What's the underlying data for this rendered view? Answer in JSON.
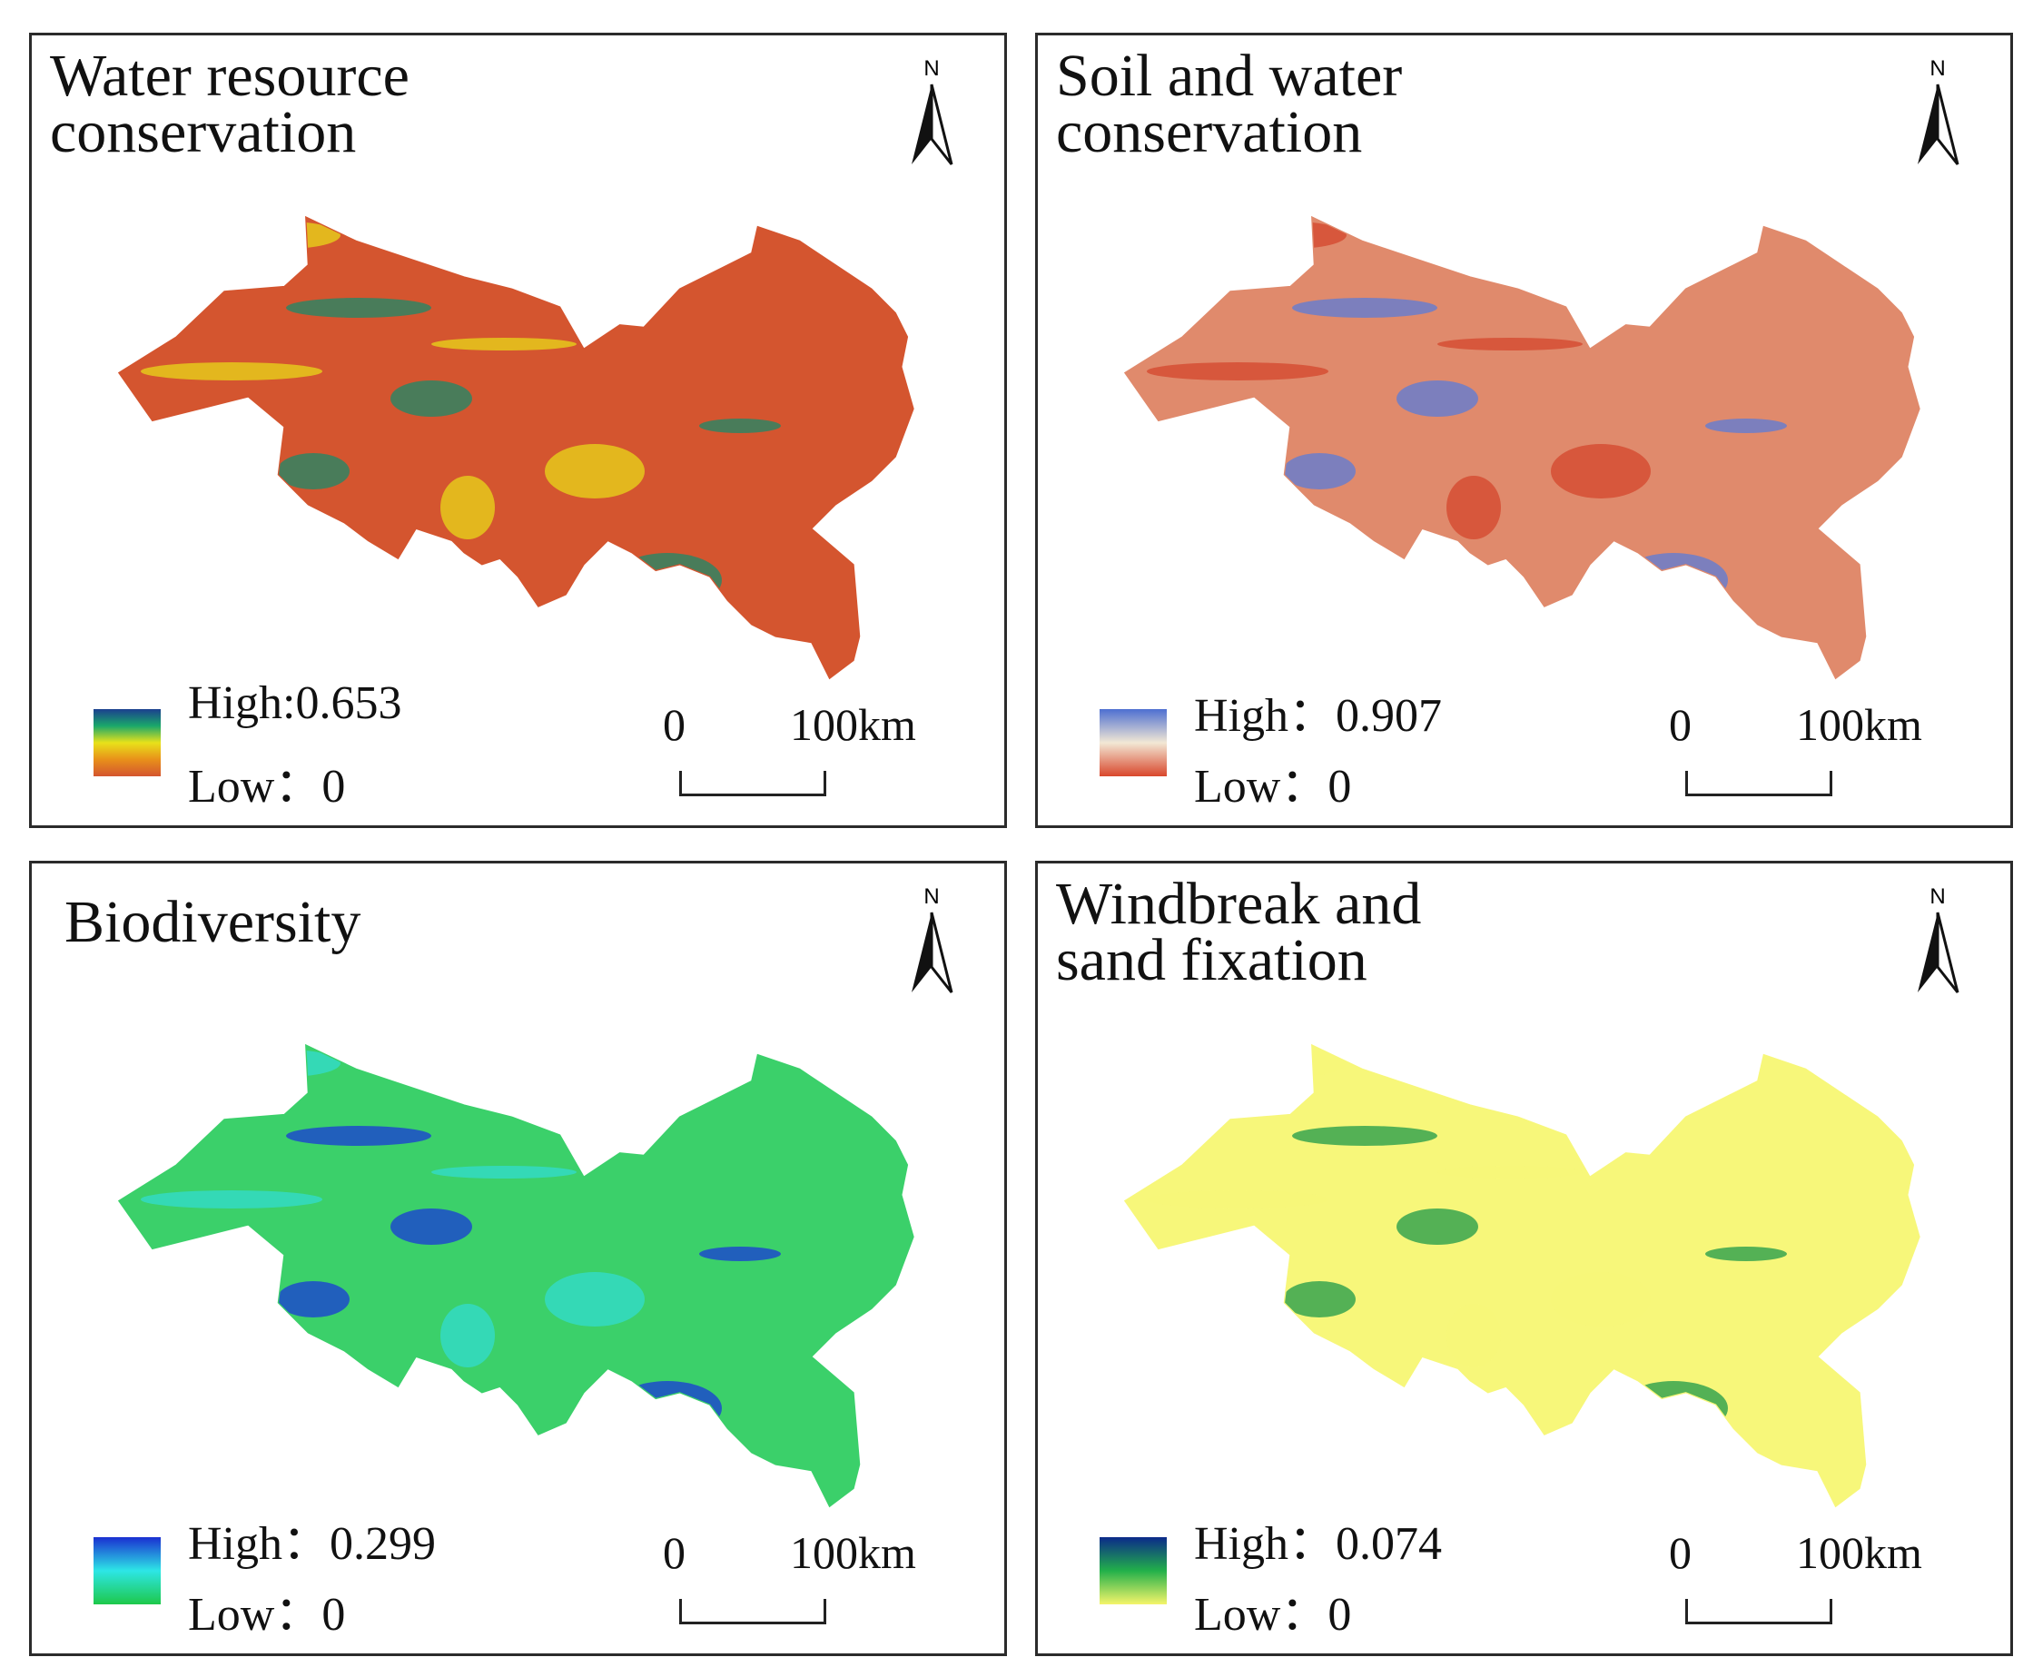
{
  "panels": [
    {
      "title": "Water resource\nconservation",
      "high": "High:0.653",
      "low": "Low：0",
      "north": "N",
      "scale_zero": "0",
      "scale_max": "100km",
      "gradient": [
        "#1b3f8f",
        "#1aa86a",
        "#e8e21a",
        "#e8901a",
        "#d4552f"
      ],
      "base": "#d4552f",
      "accent": "#1b8a6a",
      "accent2": "#e8d81a"
    },
    {
      "title": "Soil and water\nconservation",
      "high": "High：0.907",
      "low": "Low：0",
      "north": "N",
      "scale_zero": "0",
      "scale_max": "100km",
      "gradient": [
        "#4d6fd1",
        "#f2e8d5",
        "#d9472c"
      ],
      "base": "#e08a6c",
      "accent": "#5b7bd8",
      "accent2": "#d4452c"
    },
    {
      "title": "Biodiversity",
      "high": "High：0.299",
      "low": "Low：0",
      "north": "N",
      "scale_zero": "0",
      "scale_max": "100km",
      "gradient": [
        "#1a2fd1",
        "#2de6e6",
        "#1ec84a"
      ],
      "base": "#3bd06a",
      "accent": "#1a3ad8",
      "accent2": "#33dcd0"
    },
    {
      "title": "Windbreak and\nsand fixation",
      "high": "High：0.074",
      "low": "Low：0",
      "north": "N",
      "scale_zero": "0",
      "scale_max": "100km",
      "gradient": [
        "#0b2a8a",
        "#22b04a",
        "#f5f56a"
      ],
      "base": "#f7f77a",
      "accent": "#1e9a4a",
      "accent2": "#f7f77a"
    }
  ]
}
